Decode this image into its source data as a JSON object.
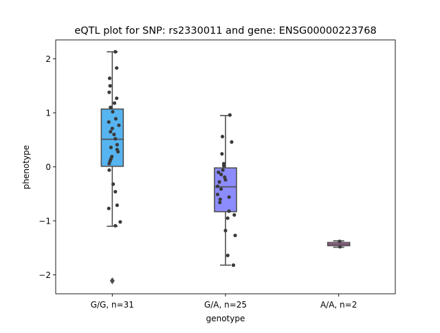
{
  "chart_data": {
    "type": "box",
    "title": "eQTL plot for SNP: rs2330011 and gene: ENSG00000223768",
    "xlabel": "genotype",
    "ylabel": "phenotype",
    "ylim": [
      -2.35,
      2.35
    ],
    "yticks": [
      -2,
      -1,
      0,
      1,
      2
    ],
    "ytick_labels": [
      "−2",
      "−1",
      "0",
      "1",
      "2"
    ],
    "grid": false,
    "categories": [
      "G/G, n=31",
      "G/A, n=25",
      "A/A, n=2"
    ],
    "colors": {
      "box_fills": [
        "#56b4f0",
        "#8c8cff",
        "#dd77c6"
      ],
      "box_edge": "#4d4d4d",
      "points": "#3a3a3a"
    },
    "groups": [
      {
        "label": "G/G, n=31",
        "box": {
          "q1": 0.01,
          "median": 0.51,
          "q3": 1.07,
          "whisker_low": -1.1,
          "whisker_high": 2.13
        },
        "outliers": [
          -2.11
        ],
        "points": [
          {
            "j": 0.14,
            "y": 2.13
          },
          {
            "j": 0.2,
            "y": 1.83
          },
          {
            "j": -0.12,
            "y": 1.64
          },
          {
            "j": -0.1,
            "y": 1.5
          },
          {
            "j": -0.14,
            "y": 1.38
          },
          {
            "j": 0.2,
            "y": 1.27
          },
          {
            "j": 0.1,
            "y": 1.18
          },
          {
            "j": -0.08,
            "y": 1.1
          },
          {
            "j": 0.02,
            "y": 1.02
          },
          {
            "j": 0.16,
            "y": 0.89
          },
          {
            "j": -0.16,
            "y": 0.83
          },
          {
            "j": 0.3,
            "y": 0.77
          },
          {
            "j": 0.0,
            "y": 0.71
          },
          {
            "j": -0.08,
            "y": 0.65
          },
          {
            "j": 0.08,
            "y": 0.6
          },
          {
            "j": 0.14,
            "y": 0.52
          },
          {
            "j": 0.22,
            "y": 0.41
          },
          {
            "j": -0.06,
            "y": 0.36
          },
          {
            "j": 0.22,
            "y": 0.32
          },
          {
            "j": 0.26,
            "y": 0.28
          },
          {
            "j": -0.02,
            "y": 0.19
          },
          {
            "j": -0.06,
            "y": 0.15
          },
          {
            "j": -0.1,
            "y": 0.11
          },
          {
            "j": -0.14,
            "y": 0.06
          },
          {
            "j": -0.14,
            "y": -0.06
          },
          {
            "j": 0.04,
            "y": -0.32
          },
          {
            "j": 0.14,
            "y": -0.46
          },
          {
            "j": 0.22,
            "y": -0.71
          },
          {
            "j": -0.16,
            "y": -0.77
          },
          {
            "j": 0.36,
            "y": -1.02
          },
          {
            "j": 0.14,
            "y": -1.09
          }
        ]
      },
      {
        "label": "G/A, n=25",
        "box": {
          "q1": -0.83,
          "median": -0.37,
          "q3": -0.02,
          "whisker_low": -1.82,
          "whisker_high": 0.95
        },
        "outliers": [],
        "points": [
          {
            "j": 0.2,
            "y": 0.96
          },
          {
            "j": -0.14,
            "y": 0.56
          },
          {
            "j": 0.28,
            "y": 0.46
          },
          {
            "j": -0.16,
            "y": 0.24
          },
          {
            "j": -0.08,
            "y": 0.06
          },
          {
            "j": -0.08,
            "y": 0.02
          },
          {
            "j": -0.12,
            "y": -0.06
          },
          {
            "j": -0.32,
            "y": -0.1
          },
          {
            "j": -0.2,
            "y": -0.14
          },
          {
            "j": -0.04,
            "y": -0.19
          },
          {
            "j": 0.0,
            "y": -0.24
          },
          {
            "j": -0.28,
            "y": -0.28
          },
          {
            "j": -0.36,
            "y": -0.36
          },
          {
            "j": -0.2,
            "y": -0.41
          },
          {
            "j": -0.36,
            "y": -0.51
          },
          {
            "j": 0.16,
            "y": -0.56
          },
          {
            "j": -0.24,
            "y": -0.6
          },
          {
            "j": -0.26,
            "y": -0.66
          },
          {
            "j": 0.16,
            "y": -0.82
          },
          {
            "j": 0.4,
            "y": -0.89
          },
          {
            "j": 0.1,
            "y": -0.95
          },
          {
            "j": 0.0,
            "y": -1.18
          },
          {
            "j": 0.44,
            "y": -1.27
          },
          {
            "j": 0.1,
            "y": -1.64
          },
          {
            "j": 0.36,
            "y": -1.82
          }
        ]
      },
      {
        "label": "A/A, n=2",
        "box": {
          "q1": -1.46,
          "median": -1.43,
          "q3": -1.4,
          "whisker_low": -1.49,
          "whisker_high": -1.37
        },
        "outliers": [],
        "points": [
          {
            "j": 0.04,
            "y": -1.38
          },
          {
            "j": 0.06,
            "y": -1.48
          }
        ]
      }
    ]
  }
}
